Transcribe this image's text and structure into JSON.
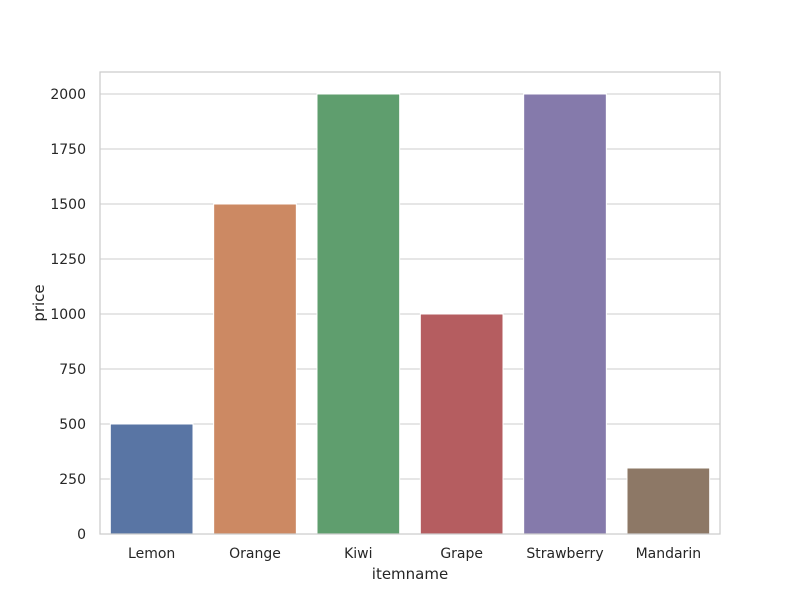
{
  "chart_data": {
    "type": "bar",
    "title": "",
    "xlabel": "itemname",
    "ylabel": "price",
    "categories": [
      "Lemon",
      "Orange",
      "Kiwi",
      "Grape",
      "Strawberry",
      "Mandarin"
    ],
    "values": [
      500,
      1500,
      2000,
      1000,
      2000,
      300
    ],
    "colors": [
      "#5975a4",
      "#cc8963",
      "#5f9e6e",
      "#b55d60",
      "#857aab",
      "#8d7866"
    ],
    "ylim": [
      0,
      2100
    ],
    "yticks": [
      0,
      250,
      500,
      750,
      1000,
      1250,
      1500,
      1750,
      2000
    ],
    "grid": true,
    "style": {
      "background": "#ffffff",
      "grid_color": "#cccccc",
      "spine_color": "#cccccc"
    }
  }
}
